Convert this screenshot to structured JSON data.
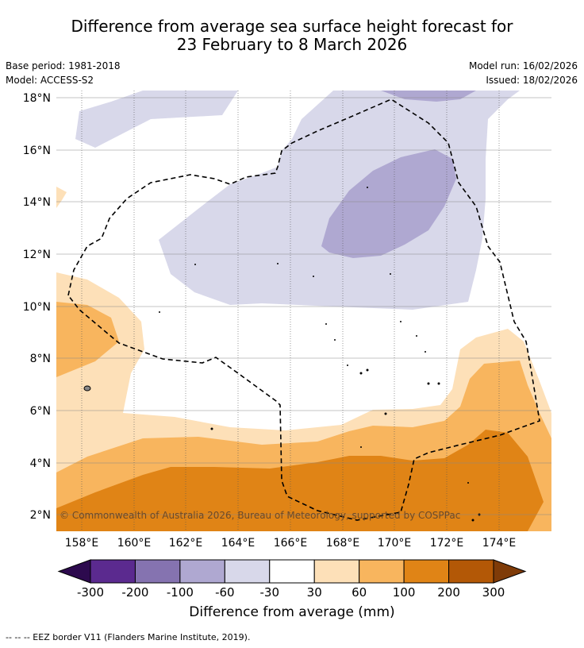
{
  "title": {
    "line1": "Difference from average sea surface height forecast for",
    "line2": "23 February to 8 March 2026"
  },
  "info": {
    "base_period": "Base period: 1981-2018",
    "model": "Model: ACCESS-S2",
    "model_run": "Model run: 16/02/2026",
    "issued": "Issued: 18/02/2026"
  },
  "map": {
    "lat_labels": [
      "18°N",
      "16°N",
      "14°N",
      "12°N",
      "10°N",
      "8°N",
      "6°N",
      "4°N",
      "2°N"
    ],
    "lon_labels": [
      "158°E",
      "160°E",
      "162°E",
      "164°E",
      "166°E",
      "168°E",
      "170°E",
      "172°E",
      "174°E"
    ],
    "copyright": "© Commonwealth of Australia 2026, Bureau of Meteorology, supported by COSPPac"
  },
  "colorbar": {
    "title": "Difference from average (mm)",
    "tick_labels": [
      "-300",
      "-200",
      "-100",
      "-60",
      "-30",
      "30",
      "60",
      "100",
      "200",
      "300"
    ],
    "colors": [
      "#2d0a4e",
      "#5b2a8f",
      "#8573b0",
      "#afa8d1",
      "#d8d8ea",
      "#ffffff",
      "#fde0b8",
      "#f8b55e",
      "#e08416",
      "#b35806",
      "#7f3b08"
    ]
  },
  "footer": {
    "legend": "-- -- -- EEZ border V11 (Flanders Marine Institute, 2019)."
  }
}
